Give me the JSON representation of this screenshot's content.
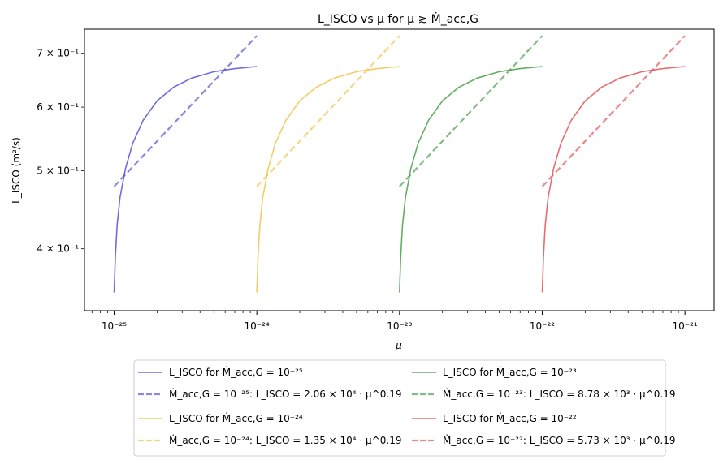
{
  "chart_data": {
    "type": "line",
    "title": "L_ISCO vs μ for μ ≳ Ṁ_acc,G",
    "xlabel": "μ",
    "ylabel": "L_ISCO (m²/s)",
    "x_scale": "log",
    "y_scale": "log",
    "xlim": [
      6.2e-26,
      1.6e-21
    ],
    "ylim": [
      0.335,
      0.75
    ],
    "x_ticks": [
      {
        "value": 1e-25,
        "label": "10⁻²⁵"
      },
      {
        "value": 1e-24,
        "label": "10⁻²⁴"
      },
      {
        "value": 1e-23,
        "label": "10⁻²³"
      },
      {
        "value": 1e-22,
        "label": "10⁻²²"
      },
      {
        "value": 1e-21,
        "label": "10⁻²¹"
      }
    ],
    "y_ticks": [
      {
        "value": 0.4,
        "label": "4 × 10⁻¹"
      },
      {
        "value": 0.5,
        "label": "5 × 10⁻¹"
      },
      {
        "value": 0.6,
        "label": "6 × 10⁻¹"
      },
      {
        "value": 0.7,
        "label": "7 × 10⁻¹"
      }
    ],
    "grid": false,
    "legend_placement": "below",
    "series": [
      {
        "name": "L_ISCO for Ṁ_acc,G = 10⁻²⁵",
        "style": "solid",
        "color": "#4a4ad6",
        "x": [
          1e-25,
          1.02e-25,
          1.05e-25,
          1.1e-25,
          1.2e-25,
          1.35e-25,
          1.6e-25,
          2e-25,
          2.6e-25,
          3.5e-25,
          5e-25,
          7e-25,
          1e-24
        ],
        "y": [
          0.353,
          0.391,
          0.428,
          0.463,
          0.503,
          0.541,
          0.578,
          0.611,
          0.635,
          0.652,
          0.664,
          0.67,
          0.674
        ]
      },
      {
        "name": "Ṁ_acc,G = 10⁻²⁵: L_ISCO = 2.06 × 10⁴ · μ^0.19",
        "style": "dashed",
        "color": "#4a4ad6",
        "x": [
          1e-25,
          1e-24
        ],
        "y": [
          0.478,
          0.736
        ]
      },
      {
        "name": "L_ISCO for Ṁ_acc,G = 10⁻²⁴",
        "style": "solid",
        "color": "#f0c040",
        "x": [
          1e-24,
          1.02e-24,
          1.05e-24,
          1.1e-24,
          1.2e-24,
          1.35e-24,
          1.6e-24,
          2e-24,
          2.6e-24,
          3.5e-24,
          5e-24,
          7e-24,
          1e-23
        ],
        "y": [
          0.353,
          0.391,
          0.428,
          0.463,
          0.503,
          0.541,
          0.578,
          0.611,
          0.635,
          0.652,
          0.664,
          0.67,
          0.674
        ]
      },
      {
        "name": "Ṁ_acc,G = 10⁻²⁴: L_ISCO = 1.35 × 10⁴ · μ^0.19",
        "style": "dashed",
        "color": "#f0c040",
        "x": [
          1e-24,
          1e-23
        ],
        "y": [
          0.478,
          0.736
        ]
      },
      {
        "name": "L_ISCO for Ṁ_acc,G = 10⁻²³",
        "style": "solid",
        "color": "#3d9a3d",
        "x": [
          1e-23,
          1.02e-23,
          1.05e-23,
          1.1e-23,
          1.2e-23,
          1.35e-23,
          1.6e-23,
          2e-23,
          2.6e-23,
          3.5e-23,
          5e-23,
          7e-23,
          1e-22
        ],
        "y": [
          0.353,
          0.391,
          0.428,
          0.463,
          0.503,
          0.541,
          0.578,
          0.611,
          0.635,
          0.652,
          0.664,
          0.67,
          0.674
        ]
      },
      {
        "name": "Ṁ_acc,G = 10⁻²³: L_ISCO = 8.78 × 10³ · μ^0.19",
        "style": "dashed",
        "color": "#3d9a3d",
        "x": [
          1e-23,
          1e-22
        ],
        "y": [
          0.478,
          0.736
        ]
      },
      {
        "name": "L_ISCO for Ṁ_acc,G = 10⁻²²",
        "style": "solid",
        "color": "#e04a4a",
        "x": [
          1e-22,
          1.02e-22,
          1.05e-22,
          1.1e-22,
          1.2e-22,
          1.35e-22,
          1.6e-22,
          2e-22,
          2.6e-22,
          3.5e-22,
          5e-22,
          7e-22,
          1e-21
        ],
        "y": [
          0.353,
          0.391,
          0.428,
          0.463,
          0.503,
          0.541,
          0.578,
          0.611,
          0.635,
          0.652,
          0.664,
          0.67,
          0.674
        ]
      },
      {
        "name": "Ṁ_acc,G = 10⁻²²: L_ISCO = 5.73 × 10³ · μ^0.19",
        "style": "dashed",
        "color": "#e04a4a",
        "x": [
          1e-22,
          1e-21
        ],
        "y": [
          0.478,
          0.736
        ]
      }
    ]
  }
}
